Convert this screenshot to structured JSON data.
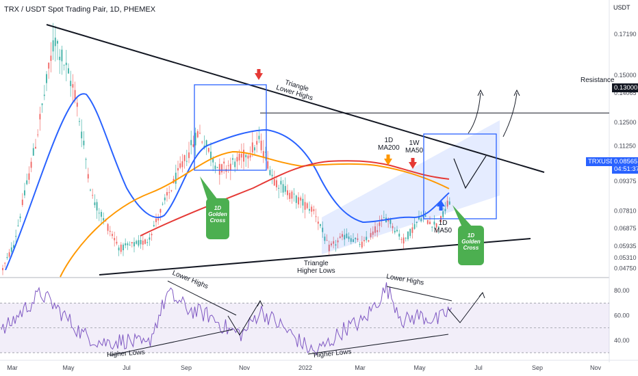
{
  "title": "TRX / USDT Spot Trading Pair, 1D, PHEMEX",
  "currency": "USDT",
  "chart_data": {
    "type": "candlestick",
    "symbol": "TRXUSDT",
    "last_price": "0.08565",
    "countdown": "04:51:37",
    "price_axis": {
      "ticks": [
        "0.17190",
        "0.15000",
        "0.14065",
        "0.12500",
        "0.11250",
        "0.10000",
        "0.09375",
        "0.07810",
        "0.06875",
        "0.05935",
        "0.05310",
        "0.04750"
      ],
      "ylim": [
        0.043,
        0.19
      ]
    },
    "time_axis": [
      "Mar",
      "May",
      "Jul",
      "Sep",
      "Nov",
      "2022",
      "Mar",
      "May",
      "Jul",
      "Sep",
      "Nov"
    ],
    "resistance": {
      "label": "Resistance",
      "value": "0.13000"
    },
    "moving_averages": [
      {
        "name": "1D MA50",
        "color": "#2962ff"
      },
      {
        "name": "1D MA200",
        "color": "#ff9800"
      },
      {
        "name": "1W MA50",
        "color": "#e53935"
      }
    ],
    "annotations": {
      "triangle_lower_highs": "Triangle\nLower Highs",
      "triangle_higher_lows": "Triangle\nHigher Lows",
      "ma200_1d": "1D\nMA200",
      "ma50_1w": "1W\nMA50",
      "ma50_1d": "1D\nMA50",
      "golden_cross_1": "1D\nGolden\nCross",
      "golden_cross_2": "1D\nGolden\nCross"
    },
    "rsi": {
      "ticks": [
        "80.00",
        "60.00",
        "40.00"
      ],
      "range": [
        30,
        70
      ],
      "labels": {
        "lower_highs_1": "Lower Highs",
        "lower_highs_2": "Lower Highs",
        "higher_lows_1": "Higher Lows",
        "higher_lows_2": "Higher Lows"
      }
    }
  }
}
